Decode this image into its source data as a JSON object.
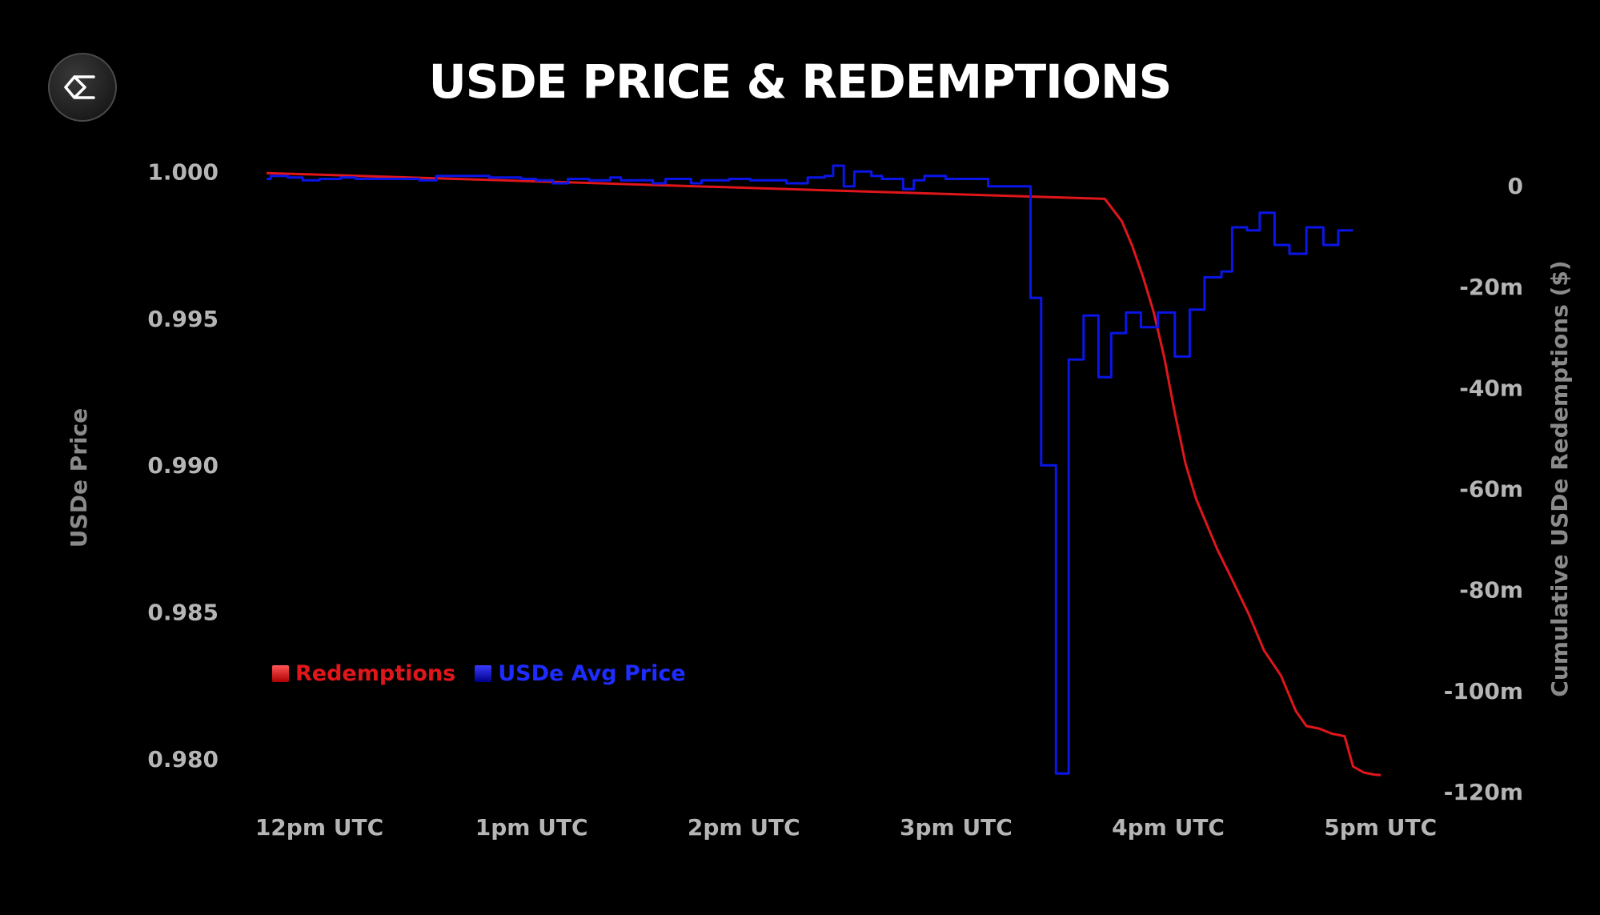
{
  "header": {
    "title": "USDE PRICE & REDEMPTIONS",
    "logo_icon": "ethena-logo-icon"
  },
  "chart_data": {
    "type": "line",
    "title": "USDE PRICE & REDEMPTIONS",
    "xlabel": "",
    "x_tick_labels": [
      "12pm UTC",
      "1pm UTC",
      "2pm UTC",
      "3pm UTC",
      "4pm UTC",
      "5pm UTC"
    ],
    "xlim": [
      12.0,
      17.25
    ],
    "left_axis": {
      "label": "USDe Price",
      "ylim": [
        0.9785,
        1.0005
      ],
      "ticks": [
        1.0,
        0.995,
        0.99,
        0.985,
        0.98
      ],
      "tick_labels": [
        "1.000",
        "0.995",
        "0.990",
        "0.985",
        "0.980"
      ]
    },
    "right_axis": {
      "label": "Cumulative USDe Redemptions ($)",
      "ylim": [
        -120,
        0
      ],
      "ticks": [
        0,
        -20,
        -40,
        -60,
        -80,
        -100,
        -120
      ],
      "tick_labels": [
        "0",
        "-20m",
        "-40m",
        "-60m",
        "-80m",
        "-100m",
        "-120m"
      ]
    },
    "grid": false,
    "legend_position": "bottom-left",
    "series": [
      {
        "name": "Redemptions",
        "axis": "right",
        "color": "#e0161b",
        "step": false,
        "points": [
          [
            12.0,
            2.5
          ],
          [
            15.95,
            -2.6
          ],
          [
            16.03,
            -7.0
          ],
          [
            16.08,
            -12.0
          ],
          [
            16.13,
            -18.0
          ],
          [
            16.18,
            -25.0
          ],
          [
            16.23,
            -34.0
          ],
          [
            16.28,
            -45.0
          ],
          [
            16.33,
            -55.0
          ],
          [
            16.38,
            -62.0
          ],
          [
            16.48,
            -72.0
          ],
          [
            16.55,
            -78.0
          ],
          [
            16.63,
            -85.0
          ],
          [
            16.7,
            -92.0
          ],
          [
            16.78,
            -97.0
          ],
          [
            16.85,
            -104.0
          ],
          [
            16.9,
            -107.0
          ],
          [
            16.96,
            -107.5
          ],
          [
            17.02,
            -108.5
          ],
          [
            17.08,
            -109.0
          ],
          [
            17.12,
            -115.0
          ],
          [
            17.17,
            -116.2
          ],
          [
            17.22,
            -116.6
          ],
          [
            17.25,
            -116.7
          ]
        ]
      },
      {
        "name": "USDe Avg Price",
        "axis": "left",
        "color": "#0a16e8",
        "step": true,
        "points": [
          [
            12.0,
            0.99975
          ],
          [
            12.02,
            0.99985
          ],
          [
            12.1,
            0.9998
          ],
          [
            12.17,
            0.9997
          ],
          [
            12.25,
            0.99975
          ],
          [
            12.35,
            0.9998
          ],
          [
            12.42,
            0.99975
          ],
          [
            12.55,
            0.99975
          ],
          [
            12.72,
            0.9997
          ],
          [
            12.8,
            0.99985
          ],
          [
            12.95,
            0.99985
          ],
          [
            13.05,
            0.9998
          ],
          [
            13.12,
            0.9998
          ],
          [
            13.2,
            0.99975
          ],
          [
            13.27,
            0.9997
          ],
          [
            13.35,
            0.9996
          ],
          [
            13.42,
            0.99975
          ],
          [
            13.52,
            0.9997
          ],
          [
            13.62,
            0.9998
          ],
          [
            13.67,
            0.9997
          ],
          [
            13.75,
            0.9997
          ],
          [
            13.82,
            0.9996
          ],
          [
            13.88,
            0.99975
          ],
          [
            14.0,
            0.9996
          ],
          [
            14.05,
            0.9997
          ],
          [
            14.18,
            0.99975
          ],
          [
            14.28,
            0.9997
          ],
          [
            14.36,
            0.9997
          ],
          [
            14.45,
            0.9996
          ],
          [
            14.55,
            0.9998
          ],
          [
            14.63,
            0.99985
          ],
          [
            14.67,
            1.0002
          ],
          [
            14.72,
            0.9995
          ],
          [
            14.77,
            1.0
          ],
          [
            14.85,
            0.99985
          ],
          [
            14.9,
            0.99975
          ],
          [
            15.0,
            0.9994
          ],
          [
            15.05,
            0.9997
          ],
          [
            15.1,
            0.99985
          ],
          [
            15.2,
            0.99975
          ],
          [
            15.35,
            0.99975
          ],
          [
            15.4,
            0.9995
          ],
          [
            15.55,
            0.9995
          ],
          [
            15.6,
            0.9957
          ],
          [
            15.65,
            0.99
          ],
          [
            15.72,
            0.9795
          ],
          [
            15.78,
            0.9936
          ],
          [
            15.85,
            0.9951
          ],
          [
            15.92,
            0.993
          ],
          [
            15.98,
            0.9945
          ],
          [
            16.05,
            0.9952
          ],
          [
            16.12,
            0.9947
          ],
          [
            16.2,
            0.9952
          ],
          [
            16.28,
            0.9937
          ],
          [
            16.35,
            0.9953
          ],
          [
            16.42,
            0.9964
          ],
          [
            16.5,
            0.9966
          ],
          [
            16.55,
            0.9981
          ],
          [
            16.62,
            0.998
          ],
          [
            16.68,
            0.9986
          ],
          [
            16.75,
            0.9975
          ],
          [
            16.82,
            0.9972
          ],
          [
            16.9,
            0.9981
          ],
          [
            16.98,
            0.9975
          ],
          [
            17.05,
            0.998
          ],
          [
            17.12,
            0.998
          ]
        ]
      }
    ]
  }
}
